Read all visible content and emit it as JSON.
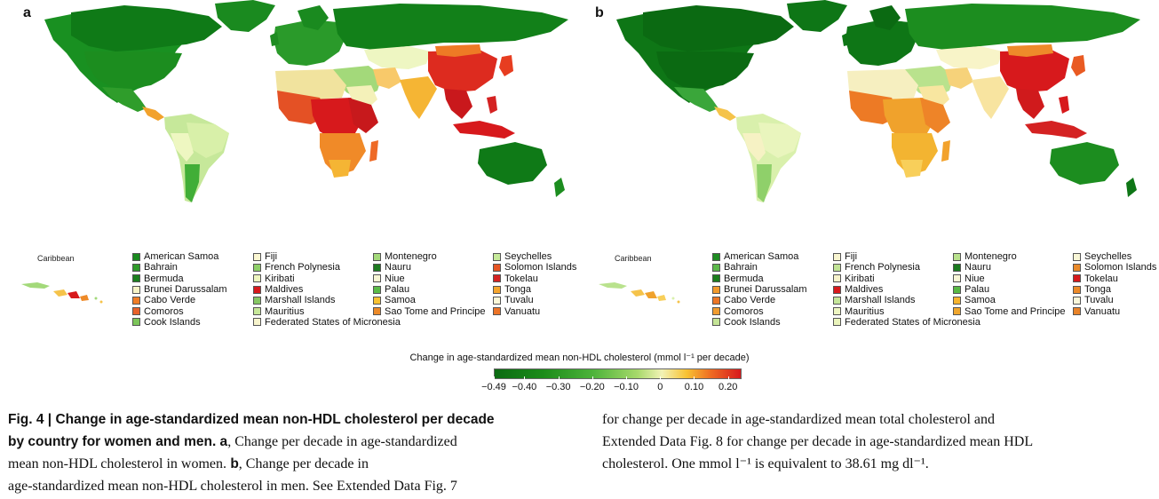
{
  "panels": [
    {
      "letter": "a"
    },
    {
      "letter": "b"
    }
  ],
  "caribbean_label": "Caribbean",
  "legend_a": [
    [
      {
        "name": "American Samoa",
        "color": "#1a8a1f"
      },
      {
        "name": "Bahrain",
        "color": "#2f9a2a"
      },
      {
        "name": "Bermuda",
        "color": "#1c7f1e"
      },
      {
        "name": "Brunei Darussalam",
        "color": "#f6f3c6"
      },
      {
        "name": "Cabo Verde",
        "color": "#f07d26"
      },
      {
        "name": "Comoros",
        "color": "#e8612a"
      },
      {
        "name": "Cook Islands",
        "color": "#7cc65a"
      }
    ],
    [
      {
        "name": "Fiji",
        "color": "#fbf7d2"
      },
      {
        "name": "French Polynesia",
        "color": "#8fd06a"
      },
      {
        "name": "Kiribati",
        "color": "#eef6c0"
      },
      {
        "name": "Maldives",
        "color": "#d7191c"
      },
      {
        "name": "Marshall Islands",
        "color": "#86c763"
      },
      {
        "name": "Mauritius",
        "color": "#c7e89a"
      },
      {
        "name": "Federated States of Micronesia",
        "color": "#f7f4cc"
      }
    ],
    [
      {
        "name": "Montenegro",
        "color": "#a3d97a"
      },
      {
        "name": "Nauru",
        "color": "#1d7a20"
      },
      {
        "name": "Niue",
        "color": "#f8f6d6"
      },
      {
        "name": "Palau",
        "color": "#5bbb48"
      },
      {
        "name": "Samoa",
        "color": "#f8c232"
      },
      {
        "name": "Sao Tome and Principe",
        "color": "#ec8a28"
      }
    ],
    [
      {
        "name": "Seychelles",
        "color": "#c6ea9a"
      },
      {
        "name": "Solomon Islands",
        "color": "#e65423"
      },
      {
        "name": "Tokelau",
        "color": "#d42222"
      },
      {
        "name": "Tonga",
        "color": "#f5a52c"
      },
      {
        "name": "Tuvalu",
        "color": "#fbf8d8"
      },
      {
        "name": "Vanuatu",
        "color": "#ed7426"
      }
    ]
  ],
  "legend_b": [
    [
      {
        "name": "American Samoa",
        "color": "#1f8b22"
      },
      {
        "name": "Bahrain",
        "color": "#5cb84a"
      },
      {
        "name": "Bermuda",
        "color": "#1c7d1d"
      },
      {
        "name": "Brunei Darussalam",
        "color": "#f19a2c"
      },
      {
        "name": "Cabo Verde",
        "color": "#ec7626"
      },
      {
        "name": "Comoros",
        "color": "#f19c30"
      },
      {
        "name": "Cook Islands",
        "color": "#c4e496"
      }
    ],
    [
      {
        "name": "Fiji",
        "color": "#f8f5d0"
      },
      {
        "name": "French Polynesia",
        "color": "#c2e497"
      },
      {
        "name": "Kiribati",
        "color": "#f7f3cc"
      },
      {
        "name": "Maldives",
        "color": "#d7191c"
      },
      {
        "name": "Marshall Islands",
        "color": "#c5e69a"
      },
      {
        "name": "Mauritius",
        "color": "#eef6c2"
      },
      {
        "name": "Federated States of Micronesia",
        "color": "#eaf4bb"
      }
    ],
    [
      {
        "name": "Montenegro",
        "color": "#b9e28d"
      },
      {
        "name": "Nauru",
        "color": "#1a7a1f"
      },
      {
        "name": "Niue",
        "color": "#f9f6d8"
      },
      {
        "name": "Palau",
        "color": "#58b844"
      },
      {
        "name": "Samoa",
        "color": "#f6b42e"
      },
      {
        "name": "Sao Tome and Principe",
        "color": "#f0a72d"
      }
    ],
    [
      {
        "name": "Seychelles",
        "color": "#f8f6d6"
      },
      {
        "name": "Solomon Islands",
        "color": "#e98a2a"
      },
      {
        "name": "Tokelau",
        "color": "#d6191c"
      },
      {
        "name": "Tonga",
        "color": "#ec8a28"
      },
      {
        "name": "Tuvalu",
        "color": "#f9f7da"
      },
      {
        "name": "Vanuatu",
        "color": "#e98328"
      }
    ]
  ],
  "colorbar": {
    "title": "Change in age-standardized mean non-HDL cholesterol (mmol l⁻¹ per decade)",
    "ticks": [
      "−0.49",
      "−0.40",
      "−0.30",
      "−0.20",
      "−0.10",
      "0",
      "0.10",
      "0.20"
    ],
    "tick_values": [
      -0.49,
      -0.4,
      -0.3,
      -0.2,
      -0.1,
      0,
      0.1,
      0.2
    ],
    "range": [
      -0.49,
      0.24
    ]
  },
  "caption": {
    "fig_label": "Fig. 4 | ",
    "fig_title": "Change in age-standardized mean non-HDL cholesterol per decade by country for women and men.",
    "a_label": " a",
    "a_text": ", Change per decade in age-standardized mean non-HDL cholesterol in women.",
    "b_label": " b",
    "b_text": ", Change per decade in age-standardized mean non-HDL cholesterol in men. See Extended Data Fig. 7 for change per decade in age-standardized mean total cholesterol and Extended Data Fig. 8 for change per decade in age-standardized mean HDL cholesterol. One mmol l⁻¹ is equivalent to 38.61 mg dl⁻¹."
  },
  "caption_lines_left": [
    "by country for women and men.",
    "mean non-HDL cholesterol in women.",
    "age-standardized mean non-HDL cholesterol in men. See Extended Data Fig. 7"
  ],
  "caption_lines_right": [
    "for change per decade in age-standardized mean total cholesterol and",
    "Extended Data Fig. 8 for change per decade in age-standardized mean HDL",
    "cholesterol. One mmol l⁻¹ is equivalent to 38.61 mg dl⁻¹."
  ],
  "colors": {
    "dark_green": "#0b6a12",
    "green": "#3aa63a",
    "light_green": "#9fd772",
    "pale": "#f4f3c2",
    "yellow": "#f8c233",
    "orange": "#ee7a25",
    "red": "#d7191c",
    "grey": "#a7a7a7"
  }
}
